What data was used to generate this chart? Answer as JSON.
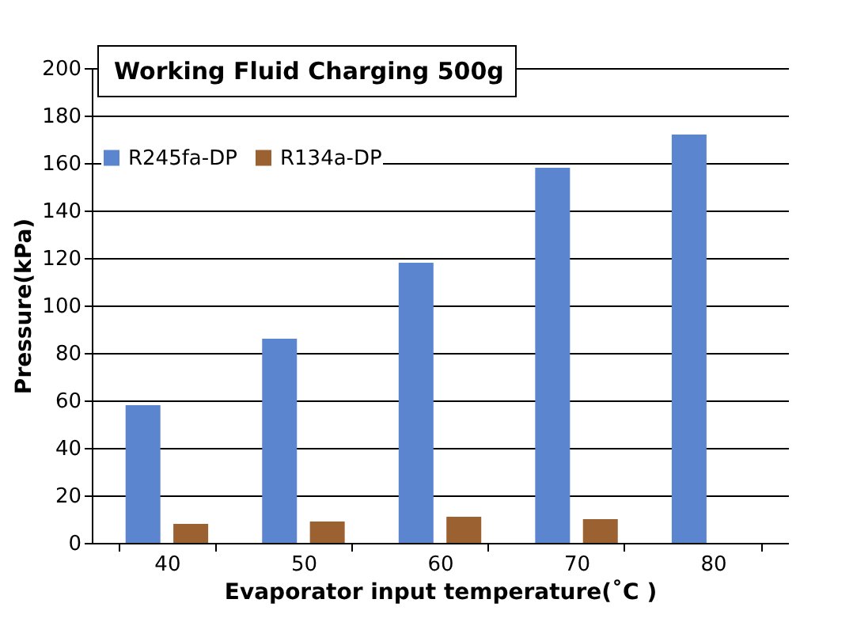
{
  "chart_data": {
    "type": "bar",
    "title": "Working Fluid Charging 500g",
    "xlabel": "Evaporator input temperature(˚C )",
    "ylabel": "Pressure(kPa)",
    "categories": [
      "40",
      "50",
      "60",
      "70",
      "80"
    ],
    "series": [
      {
        "name": "R245fa-DP",
        "color": "#5b86cf",
        "values": [
          58,
          86,
          118,
          158,
          172
        ]
      },
      {
        "name": "R134a-DP",
        "color": "#9c6131",
        "values": [
          8,
          9,
          11,
          10,
          null
        ]
      }
    ],
    "ylim": [
      0,
      200
    ],
    "yticks": [
      0,
      20,
      40,
      60,
      80,
      100,
      120,
      140,
      160,
      180,
      200
    ],
    "grid": "y",
    "legend": "top left"
  }
}
